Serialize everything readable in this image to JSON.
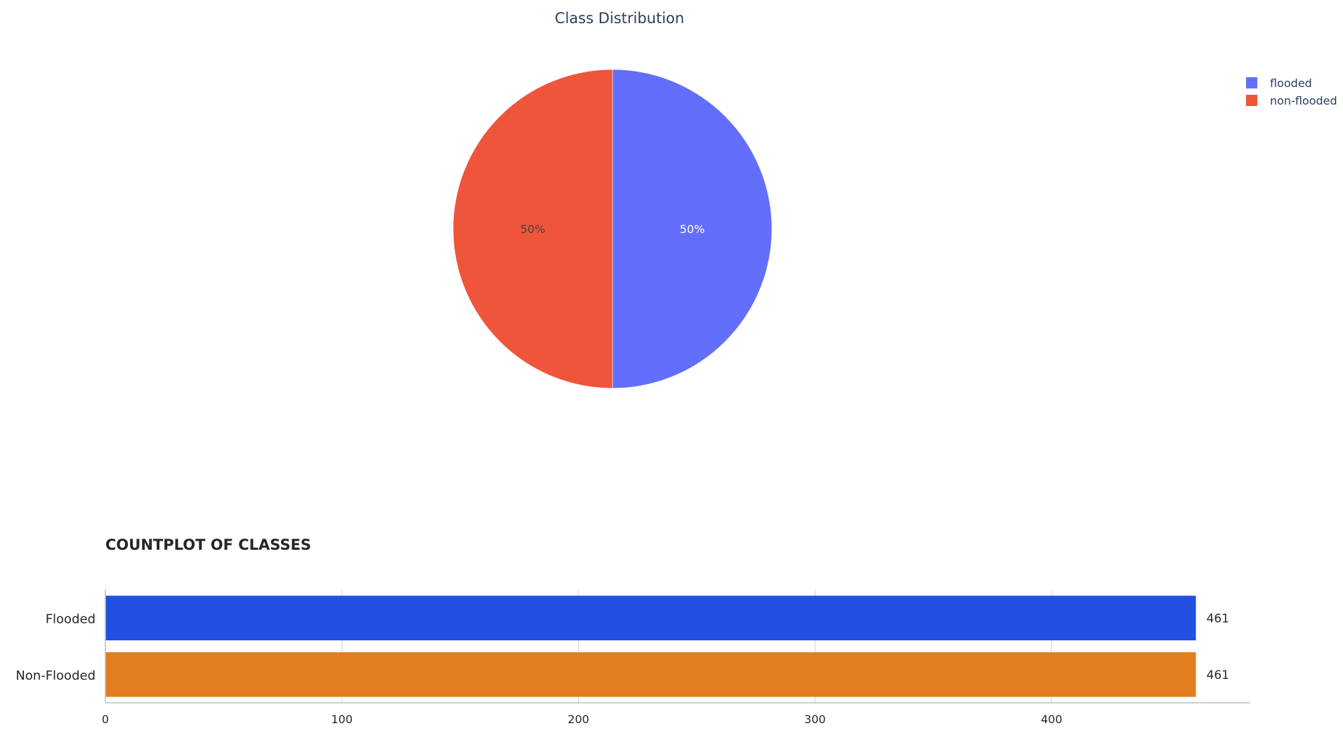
{
  "chart_data": [
    {
      "type": "pie",
      "title": "Class Distribution",
      "labels": [
        "flooded",
        "non-flooded"
      ],
      "values": [
        50,
        50
      ],
      "value_labels": [
        "50%",
        "50%"
      ],
      "colors": [
        "#636efa",
        "#ef553b"
      ],
      "legend": {
        "placement": "top-right",
        "entries": [
          "flooded",
          "non-flooded"
        ]
      }
    },
    {
      "type": "bar",
      "orientation": "horizontal",
      "title": "COUNTPLOT OF CLASSES",
      "categories": [
        "Flooded",
        "Non-Flooded"
      ],
      "values": [
        461,
        461
      ],
      "value_labels": [
        "461",
        "461"
      ],
      "colors": [
        "#2250e0",
        "#e07e20"
      ],
      "xlim": [
        0,
        484
      ],
      "xticks": [
        0,
        100,
        200,
        300,
        400
      ],
      "xtick_labels": [
        "0",
        "100",
        "200",
        "300",
        "400"
      ],
      "grid": true
    }
  ]
}
